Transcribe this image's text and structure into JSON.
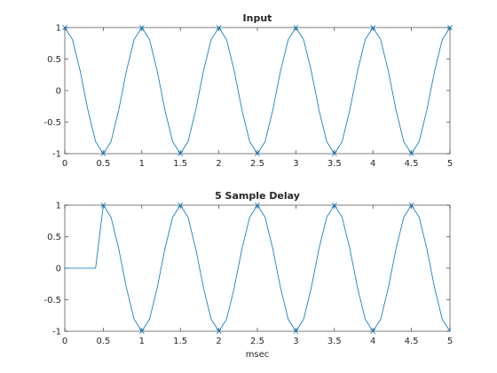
{
  "colors": {
    "series": "#0072bd",
    "axes": "#262626",
    "background": "#ffffff"
  },
  "chart_data": [
    {
      "type": "line",
      "title": "Input",
      "xlabel": "",
      "ylabel": "",
      "xlim": [
        0,
        5
      ],
      "ylim": [
        -1,
        1
      ],
      "xticks": [
        0,
        0.5,
        1,
        1.5,
        2,
        2.5,
        3,
        3.5,
        4,
        4.5,
        5
      ],
      "xtick_labels": [
        "0",
        "0.5",
        "1",
        "1.5",
        "2",
        "2.5",
        "3",
        "3.5",
        "4",
        "4.5",
        "5"
      ],
      "yticks": [
        -1,
        -0.5,
        0,
        0.5,
        1
      ],
      "ytick_labels": [
        "-1",
        "-0.5",
        "0",
        "0.5",
        "1"
      ],
      "grid": false,
      "series": [
        {
          "signal": "cosine",
          "frequency_khz": 1,
          "sample_period_ms": 0.1,
          "x_start": 0,
          "x_end": 5,
          "delay_ms": 0,
          "marked_points": [
            [
              0,
              1
            ],
            [
              0.5,
              -1
            ],
            [
              1,
              1
            ],
            [
              1.5,
              -1
            ],
            [
              2,
              1
            ],
            [
              2.5,
              -1
            ],
            [
              3,
              1
            ],
            [
              3.5,
              -1
            ],
            [
              4,
              1
            ],
            [
              4.5,
              -1
            ],
            [
              5,
              1
            ]
          ]
        }
      ]
    },
    {
      "type": "line",
      "title": "5 Sample Delay",
      "xlabel": "msec",
      "ylabel": "",
      "xlim": [
        0,
        5
      ],
      "ylim": [
        -1,
        1
      ],
      "xticks": [
        0,
        0.5,
        1,
        1.5,
        2,
        2.5,
        3,
        3.5,
        4,
        4.5,
        5
      ],
      "xtick_labels": [
        "0",
        "0.5",
        "1",
        "1.5",
        "2",
        "2.5",
        "3",
        "3.5",
        "4",
        "4.5",
        "5"
      ],
      "yticks": [
        -1,
        -0.5,
        0,
        0.5,
        1
      ],
      "ytick_labels": [
        "-1",
        "-0.5",
        "0",
        "0.5",
        "1"
      ],
      "grid": false,
      "series": [
        {
          "signal": "cosine",
          "frequency_khz": 1,
          "sample_period_ms": 0.1,
          "x_start": 0,
          "x_end": 5,
          "delay_ms": 0.5,
          "marked_points": [
            [
              0.5,
              1
            ],
            [
              1,
              -1
            ],
            [
              1.5,
              1
            ],
            [
              2,
              -1
            ],
            [
              2.5,
              1
            ],
            [
              3,
              -1
            ],
            [
              3.5,
              1
            ],
            [
              4,
              -1
            ],
            [
              4.5,
              1
            ]
          ]
        }
      ]
    }
  ]
}
